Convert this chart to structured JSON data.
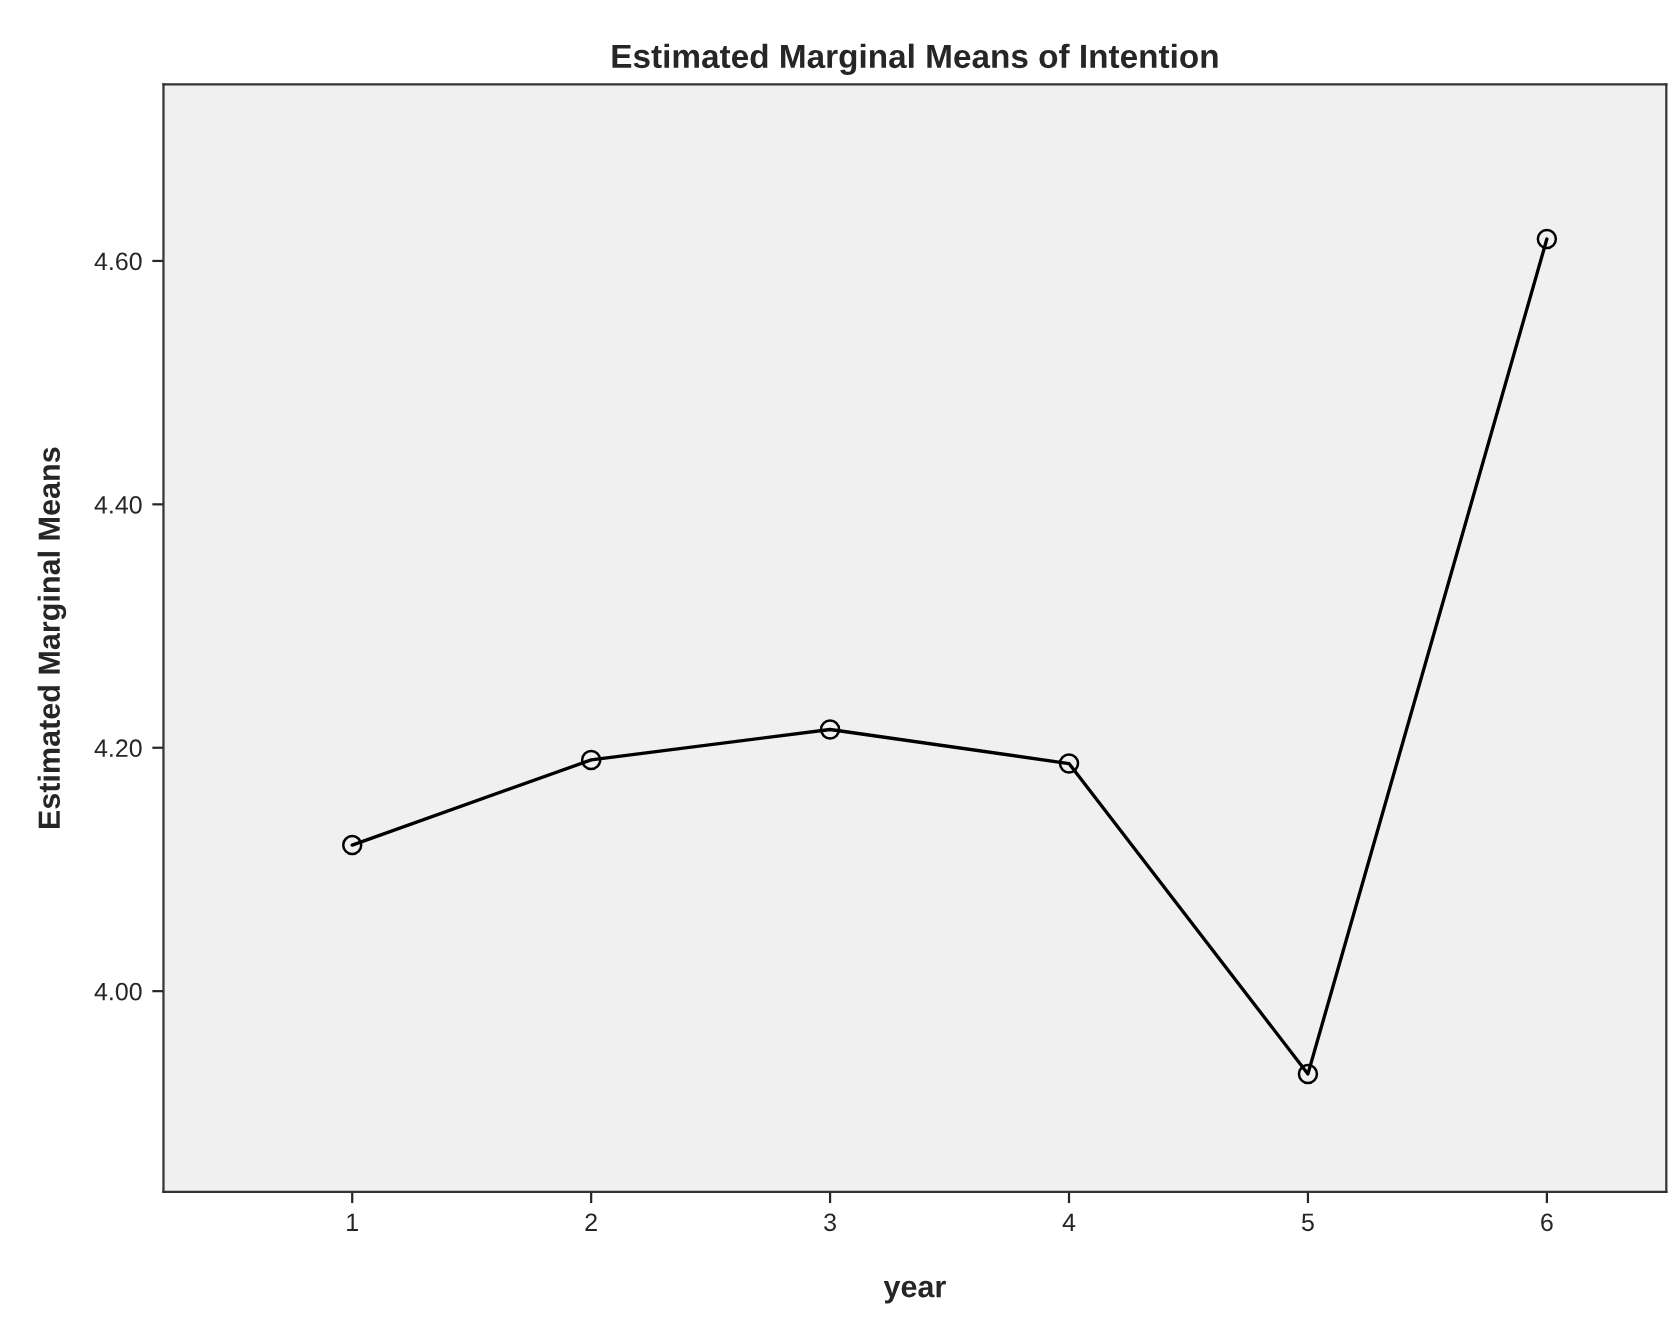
{
  "chart_data": {
    "type": "line",
    "title": "Estimated Marginal Means of Intention",
    "xlabel": "year",
    "ylabel": "Estimated Marginal Means",
    "x": [
      1,
      2,
      3,
      4,
      5,
      6
    ],
    "series": [
      {
        "color": "#000000",
        "values": [
          4.12,
          4.19,
          4.215,
          4.187,
          3.932,
          4.618
        ]
      }
    ],
    "xlim": [
      0.21,
      6.5
    ],
    "xticks": [
      1,
      2,
      3,
      4,
      5,
      6
    ],
    "ylim": [
      3.835,
      4.745
    ],
    "yticks": [
      {
        "value": 4.0,
        "label": "4.00"
      },
      {
        "value": 4.2,
        "label": "4.20"
      },
      {
        "value": 4.4,
        "label": "4.40"
      },
      {
        "value": 4.6,
        "label": "4.60"
      }
    ],
    "marker": "circle",
    "line_style": "solid",
    "grid": false,
    "legend": false
  }
}
